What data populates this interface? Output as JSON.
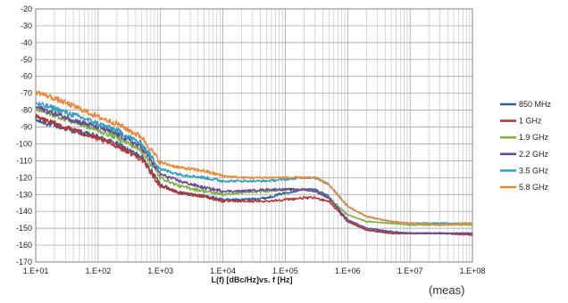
{
  "chart_data": {
    "type": "line",
    "title": "",
    "xlabel": "L(f) [dBc/Hz]vs. f [Hz]",
    "ylabel": "",
    "x_scale": "log",
    "xlim": [
      10,
      100000000
    ],
    "ylim": [
      -170,
      -20
    ],
    "y_step": 10,
    "grid": true,
    "legend_position": "right",
    "x_tick_labels": [
      "1.E+01",
      "1.E+02",
      "1.E+03",
      "1.E+04",
      "1.E+05",
      "1.E+06",
      "1.E+07",
      "1.E+08"
    ],
    "y_tick_labels": [
      "-20",
      "-30",
      "-40",
      "-50",
      "-60",
      "-70",
      "-80",
      "-90",
      "-100",
      "-110",
      "-120",
      "-130",
      "-140",
      "-150",
      "-160",
      "-170"
    ],
    "series": [
      {
        "name": "850 MHz",
        "color": "#3b5f98",
        "x": [
          10,
          20,
          50,
          100,
          200,
          500,
          1000,
          2000,
          5000,
          10000,
          20000,
          50000,
          100000,
          200000,
          300000,
          500000,
          1000000,
          2000000,
          5000000,
          10000000,
          30000000,
          100000000
        ],
        "y": [
          -86,
          -89,
          -93,
          -96,
          -100,
          -108,
          -124,
          -129,
          -131,
          -133,
          -133,
          -132,
          -129,
          -127,
          -127,
          -131,
          -146,
          -151,
          -153,
          -153,
          -153,
          -153
        ]
      },
      {
        "name": "1 GHz",
        "color": "#b03a3a",
        "x": [
          10,
          20,
          50,
          100,
          200,
          500,
          1000,
          2000,
          5000,
          10000,
          20000,
          50000,
          100000,
          200000,
          300000,
          500000,
          1000000,
          2000000,
          5000000,
          10000000,
          30000000,
          100000000
        ],
        "y": [
          -84,
          -88,
          -93,
          -97,
          -101,
          -109,
          -125,
          -129,
          -131,
          -134,
          -134,
          -134,
          -133,
          -132,
          -132,
          -134,
          -146,
          -151,
          -153,
          -153,
          -153,
          -154
        ]
      },
      {
        "name": "1.9 GHz",
        "color": "#7fb24a",
        "x": [
          10,
          20,
          50,
          100,
          200,
          500,
          1000,
          2000,
          5000,
          10000,
          20000,
          50000,
          100000,
          200000,
          300000,
          500000,
          1000000,
          2000000,
          5000000,
          10000000,
          30000000,
          100000000
        ],
        "y": [
          -79,
          -83,
          -88,
          -92,
          -96,
          -104,
          -120,
          -125,
          -128,
          -130,
          -129,
          -128,
          -127,
          -127,
          -128,
          -132,
          -142,
          -146,
          -147,
          -148,
          -148,
          -148
        ]
      },
      {
        "name": "2.2 GHz",
        "color": "#6a4c93",
        "x": [
          10,
          20,
          50,
          100,
          200,
          500,
          1000,
          2000,
          5000,
          10000,
          20000,
          50000,
          100000,
          200000,
          300000,
          500000,
          1000000,
          2000000,
          5000000,
          10000000,
          30000000,
          100000000
        ],
        "y": [
          -78,
          -82,
          -87,
          -90,
          -94,
          -102,
          -118,
          -122,
          -126,
          -128,
          -128,
          -127,
          -127,
          -127,
          -128,
          -132,
          -145,
          -150,
          -152,
          -153,
          -153,
          -153
        ]
      },
      {
        "name": "3.5 GHz",
        "color": "#3a9fbf",
        "x": [
          10,
          20,
          50,
          100,
          200,
          500,
          1000,
          2000,
          5000,
          10000,
          20000,
          50000,
          100000,
          200000,
          300000,
          500000,
          1000000,
          2000000,
          5000000,
          10000000,
          30000000,
          100000000
        ],
        "y": [
          -76,
          -79,
          -84,
          -88,
          -92,
          -100,
          -115,
          -118,
          -120,
          -122,
          -122,
          -122,
          -121,
          -120,
          -120,
          -124,
          -137,
          -143,
          -146,
          -147,
          -147,
          -147
        ]
      },
      {
        "name": "5.8 GHz",
        "color": "#e88a3c",
        "x": [
          10,
          20,
          50,
          100,
          200,
          500,
          1000,
          2000,
          5000,
          10000,
          20000,
          50000,
          100000,
          200000,
          300000,
          500000,
          1000000,
          2000000,
          5000000,
          10000000,
          30000000,
          100000000
        ],
        "y": [
          -69,
          -73,
          -79,
          -84,
          -88,
          -96,
          -111,
          -114,
          -116,
          -119,
          -120,
          -120,
          -120,
          -120,
          -120,
          -124,
          -137,
          -143,
          -146,
          -147,
          -148,
          -147
        ]
      }
    ]
  },
  "note": "(meas)"
}
